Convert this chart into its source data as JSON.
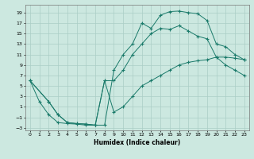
{
  "xlabel": "Humidex (Indice chaleur)",
  "bg_color": "#cce8e0",
  "grid_color": "#aacec6",
  "line_color": "#1a7a6a",
  "xlim": [
    -0.5,
    23.5
  ],
  "ylim": [
    -3.5,
    20.5
  ],
  "xticks": [
    0,
    1,
    2,
    3,
    4,
    5,
    6,
    7,
    8,
    9,
    10,
    11,
    12,
    13,
    14,
    15,
    16,
    17,
    18,
    19,
    20,
    21,
    22,
    23
  ],
  "yticks": [
    -3,
    -1,
    1,
    3,
    5,
    7,
    9,
    11,
    13,
    15,
    17,
    19
  ],
  "line1_x": [
    0,
    1,
    2,
    3,
    4,
    5,
    6,
    7,
    8,
    9,
    10,
    11,
    12,
    13,
    14,
    15,
    16,
    17,
    18,
    19,
    20,
    21,
    22,
    23
  ],
  "line1_y": [
    6,
    2,
    -0.5,
    -2,
    -2.2,
    -2.3,
    -2.5,
    -2.5,
    -2.5,
    8,
    11,
    13,
    17,
    16,
    18.5,
    19.2,
    19.3,
    19,
    18.8,
    17.5,
    13,
    12.5,
    11,
    10
  ],
  "line2_x": [
    0,
    2,
    3,
    4,
    5,
    6,
    7,
    8,
    9,
    10,
    11,
    12,
    13,
    14,
    15,
    16,
    17,
    18,
    19,
    20,
    21,
    22,
    23
  ],
  "line2_y": [
    6,
    2,
    -0.5,
    -2,
    -2.2,
    -2.3,
    -2.5,
    6,
    0,
    1,
    3,
    5,
    6,
    7,
    8,
    9,
    9.5,
    9.8,
    10,
    10.5,
    10.5,
    10.3,
    10
  ],
  "line3_x": [
    0,
    2,
    3,
    4,
    5,
    6,
    7,
    8,
    9,
    10,
    11,
    12,
    13,
    14,
    15,
    16,
    17,
    18,
    19,
    20,
    21,
    22,
    23
  ],
  "line3_y": [
    6,
    2,
    -0.5,
    -2,
    -2.2,
    -2.3,
    -2.5,
    6,
    6,
    8,
    11,
    13,
    15,
    16,
    15.8,
    16.5,
    15.5,
    14.5,
    14,
    10.5,
    9,
    8,
    7
  ]
}
